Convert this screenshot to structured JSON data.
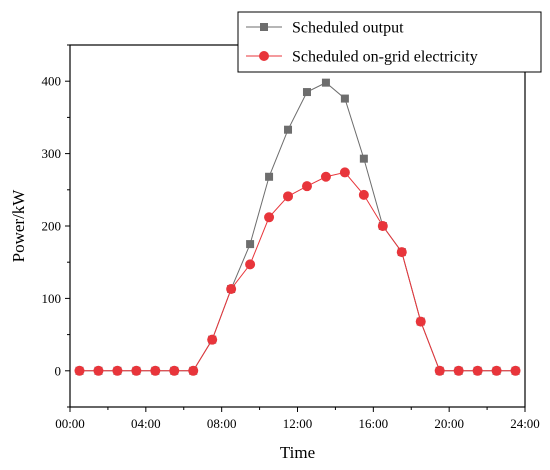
{
  "chart_data": {
    "type": "line",
    "xlabel": "Time",
    "ylabel": "Power/kW",
    "xlim": [
      0,
      24
    ],
    "ylim": [
      -50,
      450
    ],
    "x_ticks": [
      0,
      4,
      8,
      12,
      16,
      20,
      24
    ],
    "x_tick_labels": [
      "00:00",
      "04:00",
      "08:00",
      "12:00",
      "16:00",
      "20:00",
      "24:00"
    ],
    "y_ticks": [
      0,
      100,
      200,
      300,
      400
    ],
    "y_tick_labels": [
      "0",
      "100",
      "200",
      "300",
      "400"
    ],
    "grid": false,
    "legend_position": "top-right",
    "x": [
      0.5,
      1.5,
      2.5,
      3.5,
      4.5,
      5.5,
      6.5,
      7.5,
      8.5,
      9.5,
      10.5,
      11.5,
      12.5,
      13.5,
      14.5,
      15.5,
      16.5,
      17.5,
      18.5,
      19.5,
      20.5,
      21.5,
      22.5,
      23.5
    ],
    "series": [
      {
        "name": "Scheduled output",
        "color": "#6d6d6d",
        "marker": "square",
        "values": [
          0,
          0,
          0,
          0,
          0,
          0,
          0,
          43,
          113,
          175,
          268,
          333,
          385,
          398,
          376,
          293,
          200,
          164,
          68,
          0,
          0,
          0,
          0,
          0
        ]
      },
      {
        "name": "Scheduled on-grid electricity",
        "color": "#e8353b",
        "marker": "circle",
        "values": [
          0,
          0,
          0,
          0,
          0,
          0,
          0,
          43,
          113,
          147,
          212,
          241,
          255,
          268,
          274,
          243,
          200,
          164,
          68,
          0,
          0,
          0,
          0,
          0
        ]
      }
    ]
  }
}
